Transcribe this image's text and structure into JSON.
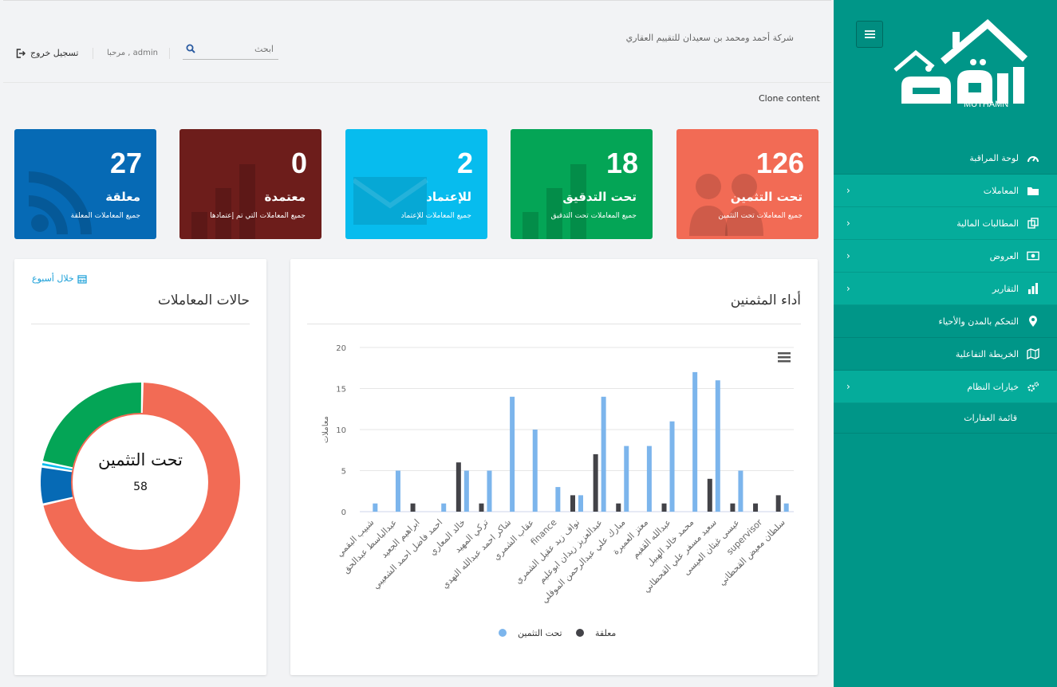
{
  "sidebar": {
    "brand_text": "MUTHAMN",
    "items": [
      {
        "label": "لوحة المراقبة",
        "icon": "gauge-icon",
        "chevron": false
      },
      {
        "label": "المعاملات",
        "icon": "folder-icon",
        "chevron": true
      },
      {
        "label": "المطالبات المالية",
        "icon": "copy-icon",
        "chevron": true
      },
      {
        "label": "العروض",
        "icon": "money-icon",
        "chevron": true
      },
      {
        "label": "التقارير",
        "icon": "bar-chart-icon",
        "chevron": true
      },
      {
        "label": "التحكم بالمدن والأحياء",
        "icon": "map-marker-icon",
        "chevron": false
      },
      {
        "label": "الخريطة التفاعلية",
        "icon": "map-icon",
        "chevron": false
      },
      {
        "label": "خيارات النظام",
        "icon": "cogs-icon",
        "chevron": true
      }
    ],
    "sub_items": [
      {
        "label": "قائمة العقارات"
      }
    ]
  },
  "header": {
    "company": "شركة أحمد ومحمد بن سعيدان للتقييم العقاري",
    "search_placeholder": "ابحث",
    "welcome": "مرحبا , admin",
    "logout": "تسجيل خروج",
    "clone": "Clone content"
  },
  "cards": [
    {
      "value": "126",
      "title": "تحت التثمين",
      "desc": "جميع المعاملات تحت التثمين",
      "color": "#f26b55",
      "icon": "users-icon"
    },
    {
      "value": "18",
      "title": "تحت التدقيق",
      "desc": "جميع المعاملات تحت التدقيق",
      "color": "#04a556",
      "icon": "bar-chart-icon"
    },
    {
      "value": "2",
      "title": "للإعتماد",
      "desc": "جميع المعاملات للإعتماد",
      "color": "#07bcee",
      "icon": "envelope-icon"
    },
    {
      "value": "0",
      "title": "معتمدة",
      "desc": "جميع المعاملات التي تم إعتمادها",
      "color": "#6d1d1b",
      "icon": "bar-chart-icon"
    },
    {
      "value": "27",
      "title": "معلقة",
      "desc": "جميع المعاملات المعلقة",
      "color": "#066ab5",
      "icon": "rss-icon"
    }
  ],
  "status_panel": {
    "title": "حالات المعاملات",
    "period": "خلال أسبوع",
    "center_label": "تحت التثمين",
    "center_value": "58",
    "segments": [
      {
        "name": "تحت التثمين",
        "value": 58,
        "color": "#f26b55"
      },
      {
        "name": "معلقة",
        "value": 5,
        "color": "#066ab5"
      },
      {
        "name": "للإعتماد",
        "value": 0.6,
        "color": "#07bcee"
      },
      {
        "name": "تحت التدقيق",
        "value": 18,
        "color": "#04a556"
      }
    ]
  },
  "perf_panel": {
    "title": "أداء المثمنين"
  },
  "chart_data": {
    "type": "bar",
    "ylabel": "معاملات",
    "ylim": [
      0,
      20
    ],
    "yticks": [
      0,
      5,
      10,
      15,
      20
    ],
    "grid": true,
    "legend_position": "bottom",
    "categories": [
      "شبيب البقمي",
      "عبدالباسط عبدالحق",
      "ابراهيم الجعيد",
      "احمد فاضل احمد الشعيبي",
      "خالد المعاري",
      "تركي المهيد",
      "شاكر احمد عبدالله النهدي",
      "عقاب الشمري",
      "finance",
      "نواف زيد عقيل الشمري",
      "عبدالعزيز زيدان ابوعليم",
      "مبارك علي عبدالرحمن الموقلي",
      "معتز العميرة",
      "عبدالله القفيم",
      "محمد خالد الهبيل",
      "سعيد مسفر علي القحطاني",
      "عيسى غيثان العيسى",
      "supervisor",
      "سلطان معيض القحطاني"
    ],
    "series": [
      {
        "name": "تحت التثمين",
        "color": "#7cb5ec",
        "values": [
          1,
          5,
          0,
          1,
          5,
          5,
          14,
          10,
          3,
          2,
          14,
          8,
          8,
          11,
          17,
          16,
          5,
          0,
          1
        ]
      },
      {
        "name": "معلقة",
        "color": "#434348",
        "values": [
          0,
          0,
          1,
          0,
          6,
          1,
          0,
          0,
          0,
          2,
          7,
          1,
          0,
          1,
          0,
          4,
          1,
          1,
          2
        ]
      }
    ]
  }
}
